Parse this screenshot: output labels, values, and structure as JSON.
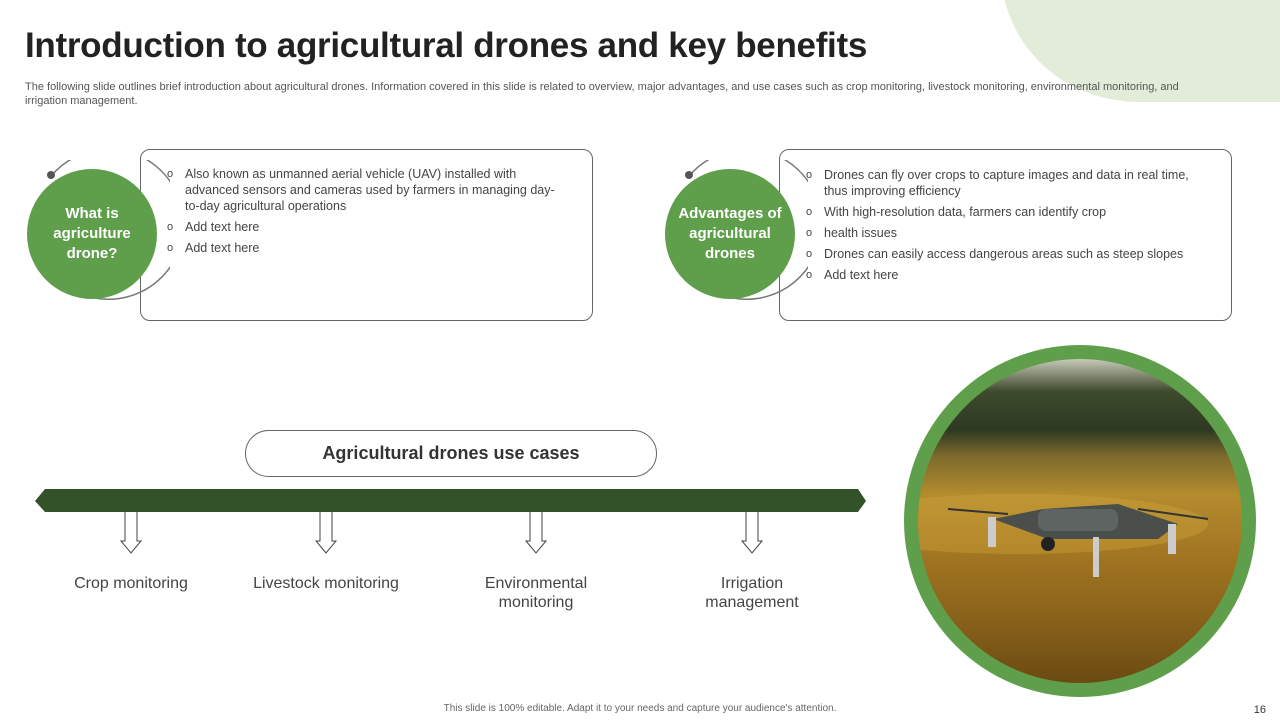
{
  "title": "Introduction to agricultural drones and key benefits",
  "subtitle": "The following slide outlines brief introduction about agricultural drones. Information covered in this slide is related to overview,  major advantages, and use cases such as crop monitoring, livestock monitoring, environmental monitoring, and irrigation management.",
  "sections": [
    {
      "heading": "What is agriculture drone?",
      "bullets": [
        "Also known as unmanned aerial vehicle (UAV) installed with advanced  sensors and cameras used by farmers in managing day-to-day agricultural operations",
        "Add text here",
        "Add text here"
      ]
    },
    {
      "heading": "Advantages of agricultural drones",
      "bullets": [
        "Drones can fly over crops to capture images and data in real time, thus improving efficiency",
        "With high-resolution data, farmers can identify crop",
        "health issues",
        "Drones can easily access dangerous areas such as steep slopes",
        "Add text here"
      ]
    }
  ],
  "use_cases": {
    "title": "Agricultural drones use cases",
    "items": [
      "Crop monitoring",
      "Livestock monitoring",
      "Environmental monitoring",
      "Irrigation management"
    ]
  },
  "footer": "This slide is 100% editable.  Adapt it to your needs and capture your audience's attention.",
  "page_number": "16",
  "colors": {
    "accent": "#5f9e4b",
    "bar": "#33522a",
    "blob": "#e2ecd9"
  }
}
